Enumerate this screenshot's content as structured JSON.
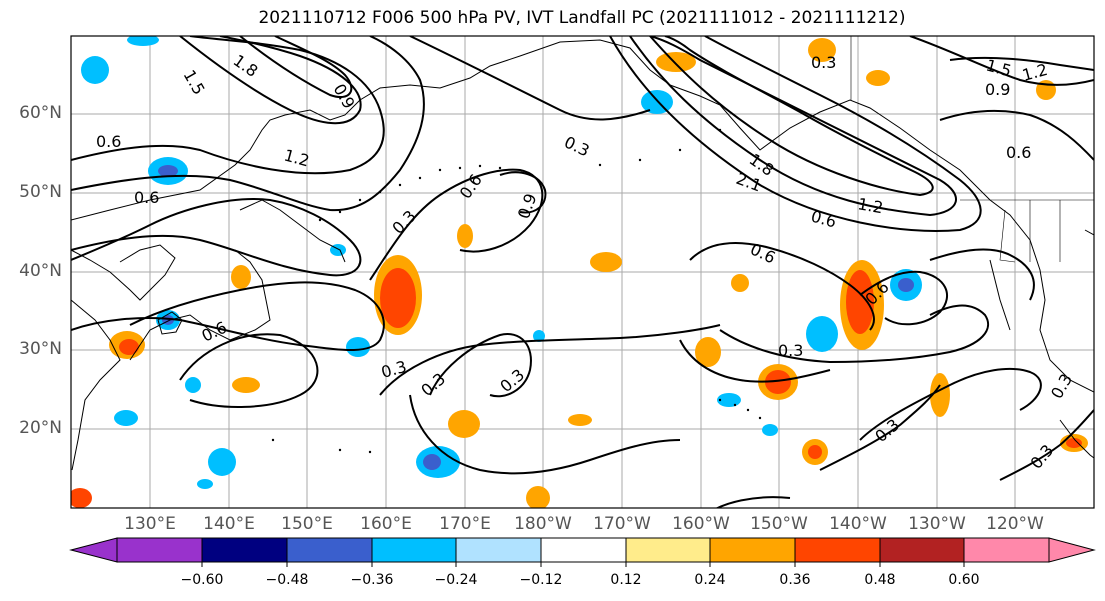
{
  "title": "2021110712 F006 500 hPa PV, IVT Landfall PC (2021111012 - 2021111212)",
  "lat_labels": [
    "60°N",
    "50°N",
    "40°N",
    "30°N",
    "20°N"
  ],
  "lon_labels": [
    "130°E",
    "140°E",
    "150°E",
    "160°E",
    "170°E",
    "180°W",
    "170°W",
    "160°W",
    "150°W",
    "140°W",
    "130°W",
    "120°W"
  ],
  "colorbar": {
    "ticks": [
      "−0.60",
      "−0.48",
      "−0.36",
      "−0.24",
      "−0.12",
      "0.12",
      "0.24",
      "0.36",
      "0.48",
      "0.60"
    ],
    "colors": [
      "#9932cc",
      "#000080",
      "#3a5fcd",
      "#00bfff",
      "#b0e2ff",
      "#ffffff",
      "#ffec8b",
      "#ffa500",
      "#ff4500",
      "#b22222",
      "#ff88aa"
    ]
  },
  "contour_labels": [
    "1.5",
    "1.8",
    "0.9",
    "0.3",
    "1.5",
    "1.2",
    "0.9",
    "0.6",
    "1.2",
    "0.6",
    "0.3",
    "0.6",
    "0.9",
    "0.3",
    "1.8",
    "2.1",
    "0.6",
    "1.2",
    "0.6",
    "0.6",
    "0.6",
    "0.3",
    "0.3",
    "0.3",
    "0.3",
    "0.3",
    "0.6",
    "0.3",
    "0.3"
  ]
}
